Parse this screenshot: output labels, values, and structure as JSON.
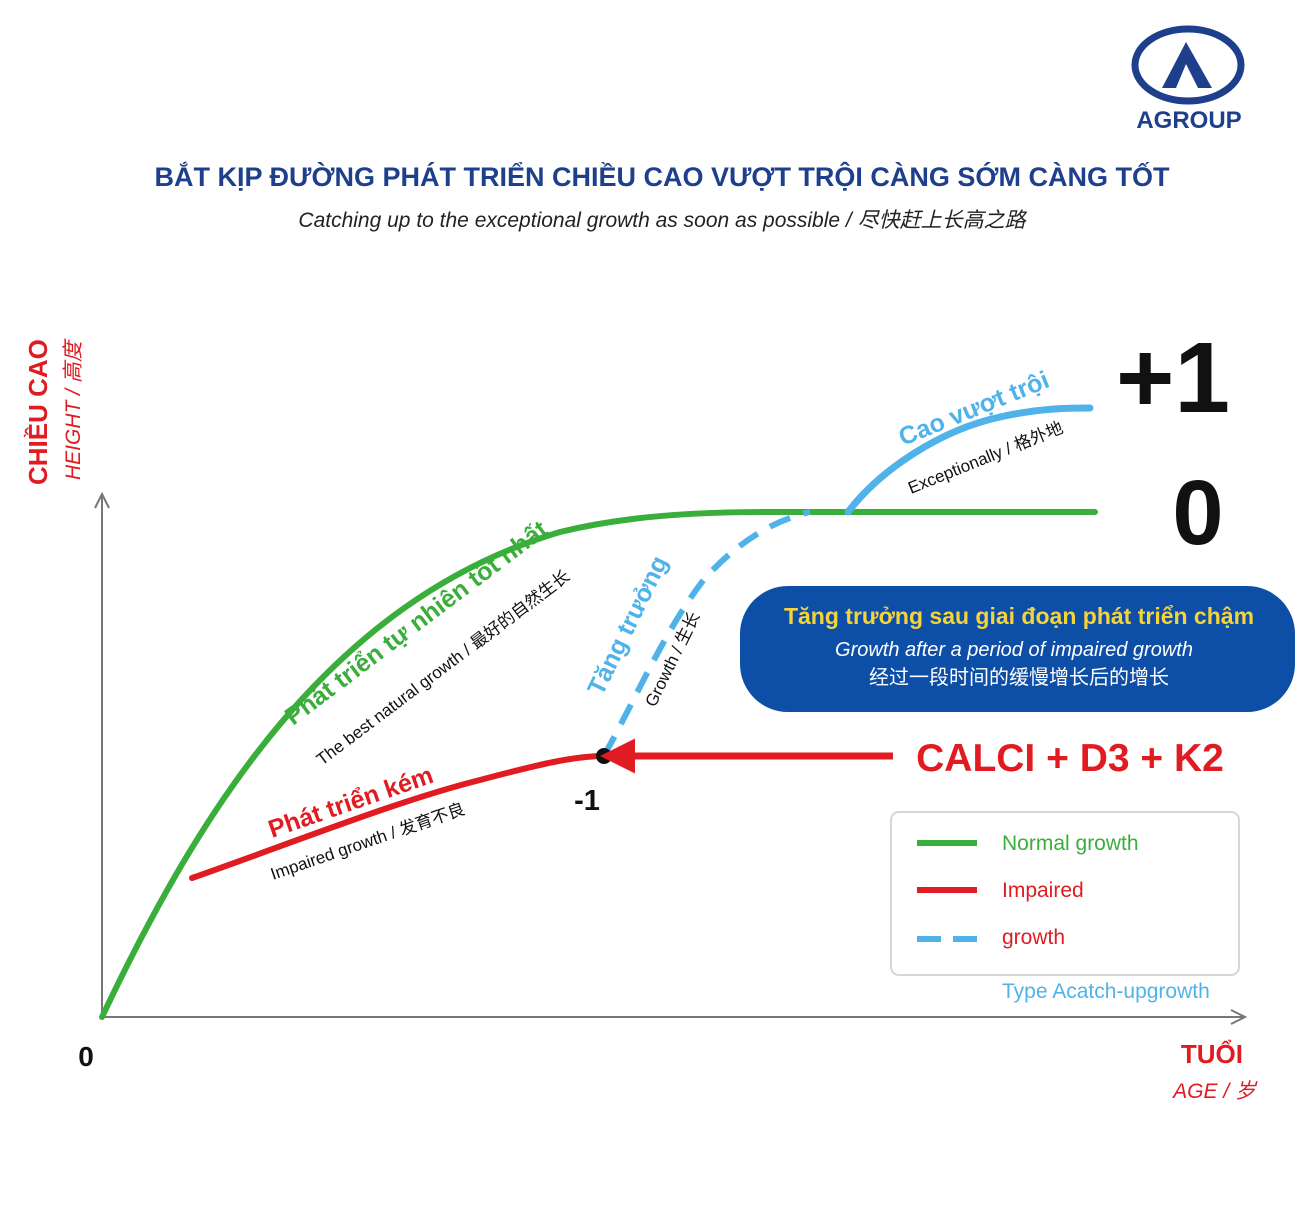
{
  "brand": {
    "name": "AGROUP",
    "color": "#1d3f8c"
  },
  "header": {
    "title": "BẮT KỊP ĐƯỜNG PHÁT TRIỂN CHIỀU CAO VƯỢT TRỘI CÀNG SỚM CÀNG TỐT",
    "subtitle": "Catching up to the exceptional growth as soon as possible  / 尽快赶上长高之路"
  },
  "axes": {
    "y_label": "CHIỀU CAO",
    "y_sublabel": "HEIGHT / 高度",
    "x_label": "TUỔI",
    "x_sublabel": "AGE / 岁",
    "origin": "0"
  },
  "levels": {
    "plus_one": "+1",
    "zero": "0",
    "minus_one": "-1"
  },
  "curves": {
    "normal": {
      "label": "Phát triển tự nhiên tốt nhất",
      "sublabel": "The best natural growth / 最好的自然生长",
      "color": "#3aae3a"
    },
    "impaired": {
      "label": "Phát triển kém",
      "sublabel": "Impaired growth / 发育不良",
      "color": "#e01b22"
    },
    "catchup": {
      "label": "Tăng trưởng",
      "sublabel": "Growth / 生长",
      "color": "#4fb3ea"
    },
    "exceptional": {
      "label": "Cao vượt trội",
      "sublabel": "Exceptionally / 格外地",
      "color": "#4fb3ea"
    }
  },
  "info_box": {
    "title": "Tăng trưởng sau giai đoạn phát triển chậm",
    "subtitle": "Growth after a period of impaired growth",
    "subtitle_cn": "经过一段时间的缓慢增长后的增长",
    "background": "#0d4ea6"
  },
  "callout": {
    "text": "CALCI + D3 + K2",
    "color": "#e01b22"
  },
  "legend": {
    "items": [
      {
        "label": "Normal growth",
        "color": "#3aae3a",
        "style": "solid"
      },
      {
        "label": "Impaired",
        "color": "#e01b22",
        "style": "solid"
      },
      {
        "label": "growth",
        "color": "#4fb3ea",
        "style": "dashed"
      }
    ],
    "caption": "Type Acatch-upgrowth"
  }
}
